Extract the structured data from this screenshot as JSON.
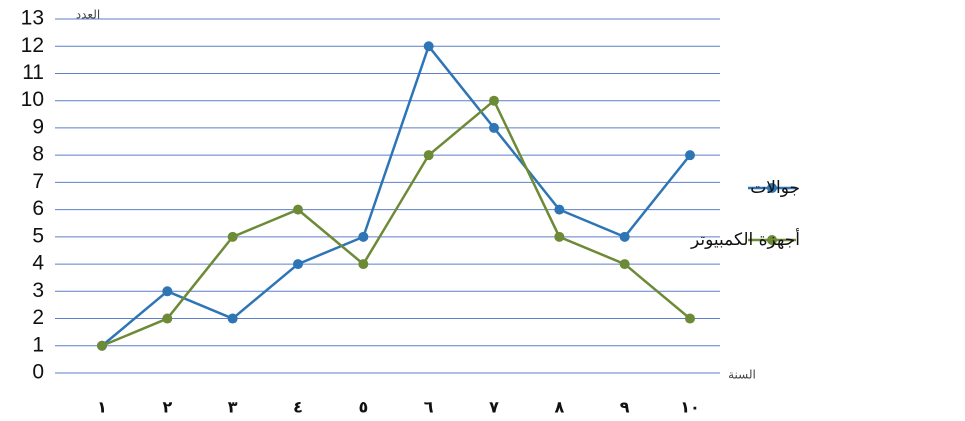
{
  "chart_data": {
    "type": "line",
    "y_label": "العدد",
    "x_label": "السنة",
    "categories": [
      "١",
      "٢",
      "٣",
      "٤",
      "٥",
      "٦",
      "٧",
      "٨",
      "٩",
      "١٠"
    ],
    "series": [
      {
        "name": "جوالات",
        "color": "#2e75b6",
        "values": [
          1,
          3,
          2,
          4,
          5,
          12,
          9,
          6,
          5,
          8
        ]
      },
      {
        "name": "أجهزة الكمبيوتر",
        "color": "#6d8a36",
        "values": [
          1,
          2,
          5,
          6,
          4,
          8,
          10,
          5,
          4,
          2
        ]
      }
    ],
    "ylim": [
      0,
      13
    ],
    "yticks": [
      0,
      1,
      2,
      3,
      4,
      5,
      6,
      7,
      8,
      9,
      10,
      11,
      12,
      13
    ],
    "grid": true
  }
}
